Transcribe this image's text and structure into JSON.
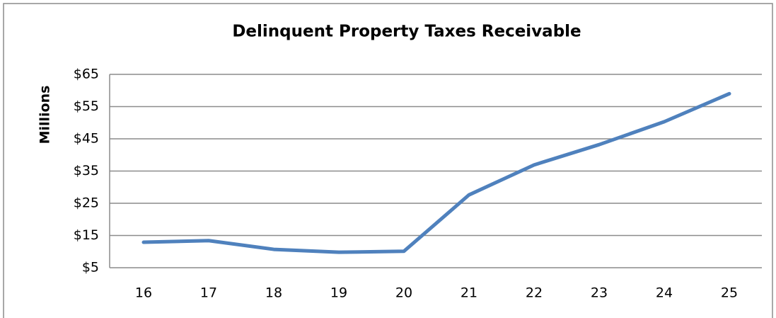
{
  "chart_data": {
    "type": "line",
    "title": "Delinquent Property Taxes Receivable",
    "y_label": "Millions",
    "categories": [
      "16",
      "17",
      "18",
      "19",
      "20",
      "21",
      "22",
      "23",
      "24",
      "25"
    ],
    "series": [
      {
        "name": "Delinquent Property Taxes Receivable",
        "color": "#4f81bd",
        "values": [
          12.9,
          13.4,
          10.7,
          9.8,
          10.1,
          27.6,
          36.9,
          43.2,
          50.3,
          59
        ]
      }
    ],
    "ylim": [
      5,
      65
    ],
    "yticks": [
      {
        "value": 5,
        "label": "$5"
      },
      {
        "value": 15,
        "label": "$15"
      },
      {
        "value": 25,
        "label": "$25"
      },
      {
        "value": 35,
        "label": "$35"
      },
      {
        "value": 45,
        "label": "$45"
      },
      {
        "value": 55,
        "label": "$55"
      },
      {
        "value": 65,
        "label": "$65"
      }
    ],
    "grid": true
  }
}
